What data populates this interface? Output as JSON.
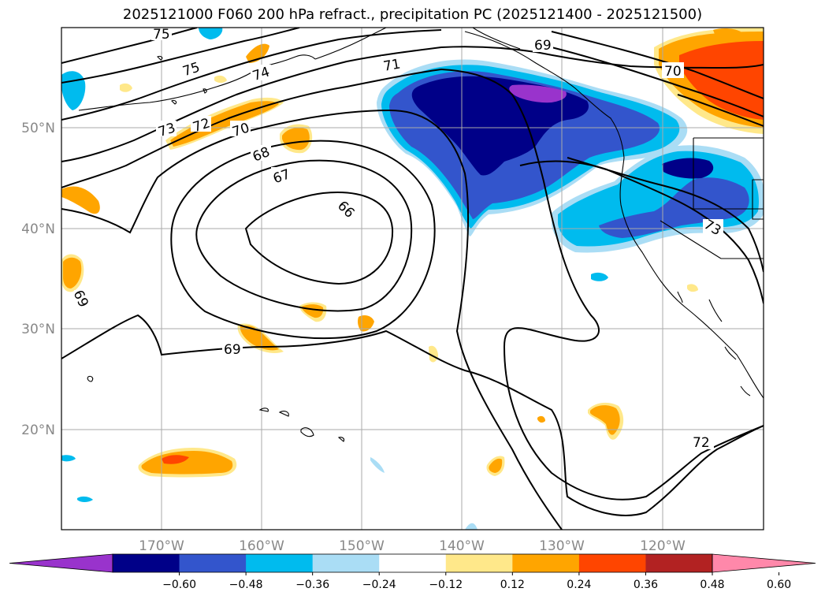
{
  "title": "2025121000 F060 200 hPa refract., precipitation PC (2025121400 - 2025121500)",
  "map": {
    "lat_labels": [
      "50°N",
      "40°N",
      "30°N",
      "20°N"
    ],
    "lon_labels": [
      "170°W",
      "160°W",
      "150°W",
      "140°W",
      "130°W",
      "120°W"
    ],
    "contour_labels": [
      "75",
      "75",
      "74",
      "73",
      "72",
      "71",
      "70",
      "69",
      "68",
      "67",
      "66",
      "69",
      "69",
      "70",
      "73",
      "72"
    ],
    "grid": true,
    "contour_color": "#000000"
  },
  "colorbar": {
    "colors": [
      "#9933cc",
      "#000088",
      "#3355cc",
      "#00bbee",
      "#aaddf5",
      "#ffffff",
      "#ffe88a",
      "#ffa500",
      "#ff4500",
      "#b22222",
      "#ff88aa"
    ],
    "ticks": [
      "−0.60",
      "−0.48",
      "−0.36",
      "−0.24",
      "−0.12",
      "0.12",
      "0.24",
      "0.36",
      "0.48",
      "0.60"
    ],
    "extend": "both"
  }
}
